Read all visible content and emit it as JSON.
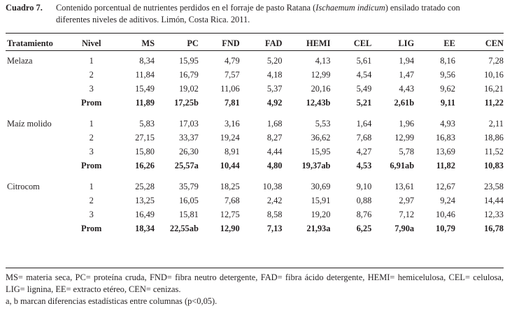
{
  "caption": {
    "label": "Cuadro 7.",
    "line1_pre": "Contenido porcentual de nutrientes perdidos en el forraje de pasto Ratana (",
    "line1_species": "Ischaemum indicum",
    "line1_post": ") ensilado tratado con",
    "line2": "diferentes niveles de aditivos. Limón, Costa Rica. 2011."
  },
  "table": {
    "headers": [
      "Tratamiento",
      "Nivel",
      "MS",
      "PC",
      "FND",
      "FAD",
      "HEMI",
      "CEL",
      "LIG",
      "EE",
      "CEN"
    ],
    "groups": [
      {
        "name": "Melaza",
        "rows": [
          {
            "nivel": "1",
            "values": [
              "8,34",
              "15,95",
              "4,79",
              "5,20",
              "4,13",
              "5,61",
              "1,94",
              "8,16",
              "7,28"
            ]
          },
          {
            "nivel": "2",
            "values": [
              "11,84",
              "16,79",
              "7,57",
              "4,18",
              "12,99",
              "4,54",
              "1,47",
              "9,56",
              "10,16"
            ]
          },
          {
            "nivel": "3",
            "values": [
              "15,49",
              "19,02",
              "11,06",
              "5,37",
              "20,16",
              "5,49",
              "4,43",
              "9,62",
              "16,21"
            ]
          },
          {
            "nivel": "Prom",
            "values": [
              "11,89",
              "17,25b",
              "7,81",
              "4,92",
              "12,43b",
              "5,21",
              "2,61b",
              "9,11",
              "11,22"
            ]
          }
        ]
      },
      {
        "name": "Maíz molido",
        "rows": [
          {
            "nivel": "1",
            "values": [
              "5,83",
              "17,03",
              "3,16",
              "1,68",
              "5,53",
              "1,64",
              "1,96",
              "4,93",
              "2,11"
            ]
          },
          {
            "nivel": "2",
            "values": [
              "27,15",
              "33,37",
              "19,24",
              "8,27",
              "36,62",
              "7,68",
              "12,99",
              "16,83",
              "18,86"
            ]
          },
          {
            "nivel": "3",
            "values": [
              "15,80",
              "26,30",
              "8,91",
              "4,44",
              "15,95",
              "4,27",
              "5,78",
              "13,69",
              "11,52"
            ]
          },
          {
            "nivel": "Prom",
            "values": [
              "16,26",
              "25,57a",
              "10,44",
              "4,80",
              "19,37ab",
              "4,53",
              "6,91ab",
              "11,82",
              "10,83"
            ]
          }
        ]
      },
      {
        "name": "Citrocom",
        "rows": [
          {
            "nivel": "1",
            "values": [
              "25,28",
              "35,79",
              "18,25",
              "10,38",
              "30,69",
              "9,10",
              "13,61",
              "12,67",
              "23,58"
            ]
          },
          {
            "nivel": "2",
            "values": [
              "13,25",
              "16,05",
              "7,68",
              "2,42",
              "15,91",
              "0,88",
              "2,97",
              "9,24",
              "14,44"
            ]
          },
          {
            "nivel": "3",
            "values": [
              "16,49",
              "15,81",
              "12,75",
              "8,58",
              "19,20",
              "8,76",
              "7,12",
              "10,46",
              "12,33"
            ]
          },
          {
            "nivel": "Prom",
            "values": [
              "18,34",
              "22,55ab",
              "12,90",
              "7,13",
              "21,93a",
              "6,25",
              "7,90a",
              "10,79",
              "16,78"
            ]
          }
        ]
      }
    ]
  },
  "notes": {
    "abbrev": "MS= materia seca, PC= proteína cruda, FND= fibra neutro detergente, FAD= fibra ácido detergente, HEMI= hemicelulosa, CEL= celulosa, LIG= lignina, EE= extracto etéreo, CEN= cenizas.",
    "stats": "a, b marcan diferencias estadísticas entre columnas (p<0,05)."
  }
}
